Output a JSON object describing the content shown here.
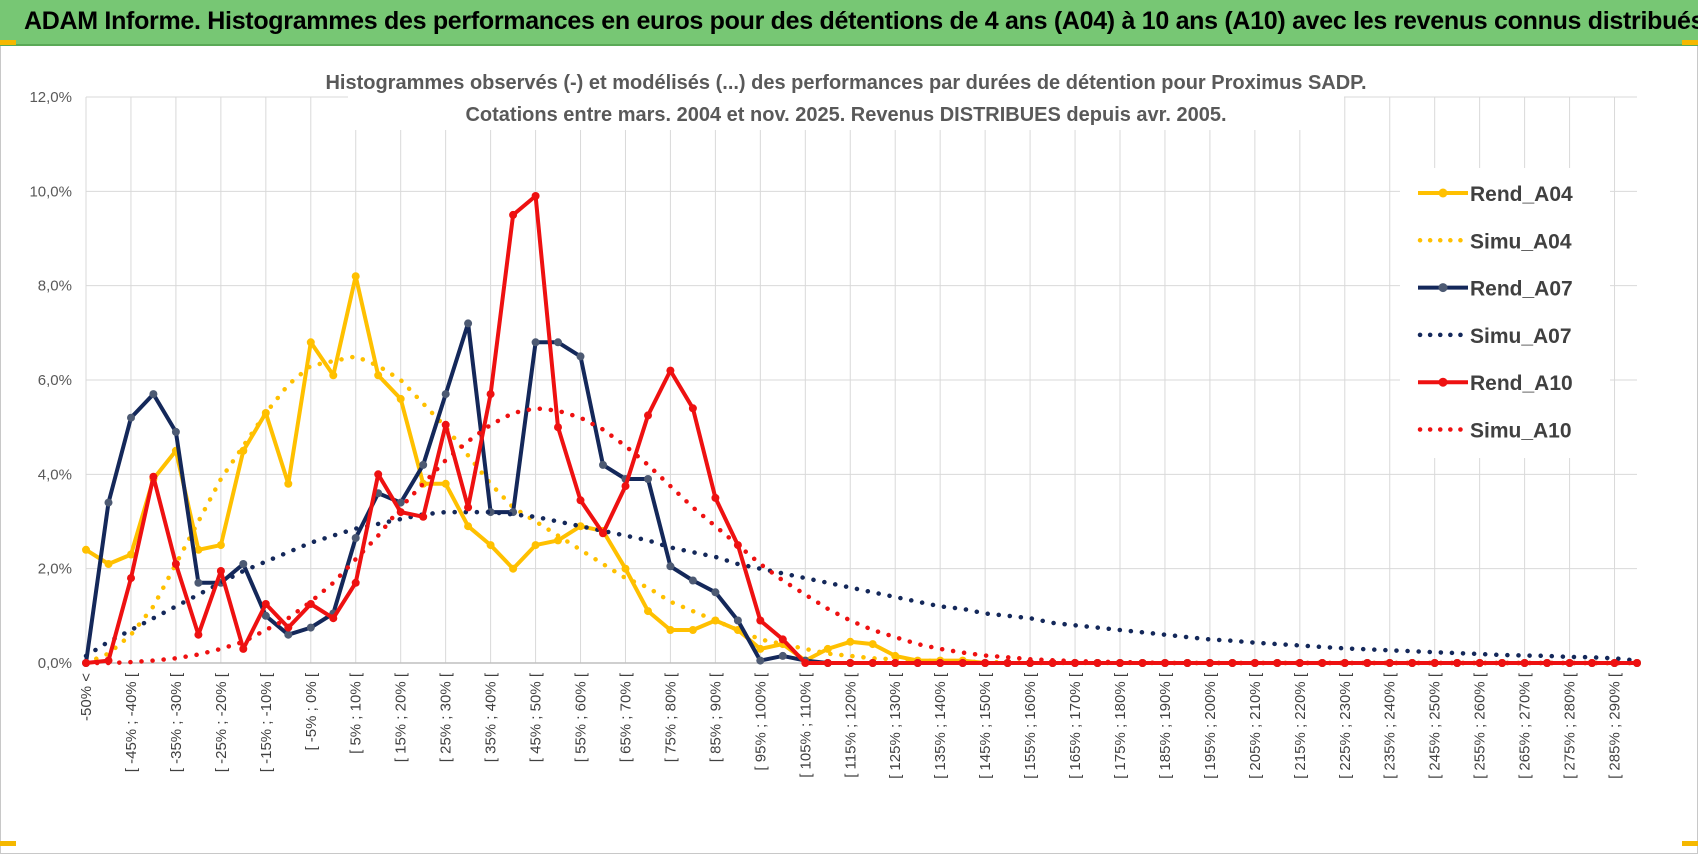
{
  "banner": {
    "title": "ADAM Informe. Histogrammes des performances en euros pour des détentions de 4 ans (A04) à 10 ans (A10) avec les revenus connus distribués"
  },
  "colors": {
    "banner_bg": "#77c774",
    "gold": "#ffc000",
    "navy": "#14285a",
    "red": "#ee1111",
    "grid": "#d9d9d9"
  },
  "chart_data": {
    "type": "line",
    "title_lines": [
      "Histogrammes observés (-) et modélisés (...) des performances par durées de détention pour Proximus SADP.",
      "Cotations entre mars. 2004  et nov. 2025.  Revenus DISTRIBUES depuis avr. 2005."
    ],
    "ylim": [
      0,
      12
    ],
    "y_ticks": [
      "0,0%",
      "2,0%",
      "4,0%",
      "6,0%",
      "8,0%",
      "10,0%",
      "12,0%"
    ],
    "grid": true,
    "legend_position": "right",
    "x_labels": [
      "-50% <",
      "[ -45% ; -40% [",
      "[ -35% ; -30% [",
      "[ -25% ; -20% [",
      "[ -15% ; -10% [",
      "[ -5% ; 0% [",
      "[ 5% ; 10% [",
      "[ 15% ; 20% [",
      "[ 25% ; 30% [",
      "[ 35% ; 40% [",
      "[ 45% ; 50% [",
      "[ 55% ; 60% [",
      "[ 65% ; 70% [",
      "[ 75% ; 80% [",
      "[ 85% ; 90% [",
      "[ 95% ; 100% [",
      "[ 105% ; 110% [",
      "[ 115% ; 120% [",
      "[ 125% ; 130% [",
      "[ 135% ; 140% [",
      "[ 145% ; 150% [",
      "[ 155% ; 160% [",
      "[ 165% ; 170% [",
      "[ 175% ; 180% [",
      "[ 185% ; 190% [",
      "[ 195% ; 200% [",
      "[ 205% ; 210% [",
      "[ 215% ; 220% [",
      "[ 225% ; 230% [",
      "[ 235% ; 240% [",
      "[ 245% ; 250% [",
      "[ 255% ; 260% [",
      "[ 265% ; 270% [",
      "[ 275% ; 280% [",
      "[ 285% ; 290% ["
    ],
    "series": [
      {
        "name": "Rend_A04",
        "style": "solid",
        "color": "#ffc000",
        "values": [
          2.4,
          2.1,
          2.3,
          3.9,
          4.5,
          2.4,
          2.5,
          4.5,
          5.3,
          3.8,
          6.8,
          6.1,
          8.2,
          6.1,
          5.6,
          3.8,
          3.8,
          2.9,
          2.5,
          2.0,
          2.5,
          2.6,
          2.9,
          2.8,
          2.0,
          1.1,
          0.7,
          0.7,
          0.9,
          0.7,
          0.3,
          0.4,
          0.05,
          0.3,
          0.45,
          0.4,
          0.15,
          0.05,
          0.05,
          0.05,
          0.0,
          0.0,
          0.0,
          0.0,
          0.0,
          0.0,
          0.0,
          0.0,
          0.0,
          0.0,
          0.0,
          0.0,
          0.0,
          0.0,
          0.0,
          0.0,
          0.0,
          0.0,
          0.0,
          0.0,
          0.0,
          0.0,
          0.0,
          0.0,
          0.0,
          0.0,
          0.0,
          0.0,
          0.0,
          0.0
        ]
      },
      {
        "name": "Simu_A04",
        "style": "dotted",
        "color": "#ffc000",
        "values": [
          0.0,
          0.2,
          0.6,
          1.2,
          2.1,
          3.0,
          3.9,
          4.6,
          5.3,
          5.9,
          6.3,
          6.4,
          6.5,
          6.3,
          6.0,
          5.5,
          5.0,
          4.4,
          3.8,
          3.3,
          3.0,
          2.7,
          2.4,
          2.1,
          1.8,
          1.6,
          1.3,
          1.1,
          0.9,
          0.7,
          0.5,
          0.4,
          0.3,
          0.2,
          0.15,
          0.1,
          0.08,
          0.05,
          0.04,
          0.03,
          0.02,
          0.01,
          0.0,
          0.0,
          0.0,
          0.0,
          0.0,
          0.0,
          0.0,
          0.0,
          0.0,
          0.0,
          0.0,
          0.0,
          0.0,
          0.0,
          0.0,
          0.0,
          0.0,
          0.0,
          0.0,
          0.0,
          0.0,
          0.0,
          0.0,
          0.0,
          0.0,
          0.0,
          0.0,
          0.0
        ]
      },
      {
        "name": "Rend_A07",
        "style": "solid",
        "color": "#14285a",
        "values": [
          0.0,
          3.4,
          5.2,
          5.7,
          4.9,
          1.7,
          1.7,
          2.1,
          1.0,
          0.6,
          0.75,
          1.05,
          2.65,
          3.6,
          3.4,
          4.2,
          5.7,
          7.2,
          3.2,
          3.2,
          6.8,
          6.8,
          6.5,
          4.2,
          3.9,
          3.9,
          2.05,
          1.75,
          1.5,
          0.9,
          0.05,
          0.15,
          0.05,
          0.0,
          0.0,
          0.0,
          0.0,
          0.0,
          0.0,
          0.0,
          0.0,
          0.0,
          0.0,
          0.0,
          0.0,
          0.0,
          0.0,
          0.0,
          0.0,
          0.0,
          0.0,
          0.0,
          0.0,
          0.0,
          0.0,
          0.0,
          0.0,
          0.0,
          0.0,
          0.0,
          0.0,
          0.0,
          0.0,
          0.0,
          0.0,
          0.0,
          0.0,
          0.0,
          0.0,
          0.0
        ]
      },
      {
        "name": "Simu_A07",
        "style": "dotted",
        "color": "#14285a",
        "values": [
          0.15,
          0.45,
          0.7,
          0.95,
          1.2,
          1.45,
          1.7,
          1.95,
          2.15,
          2.35,
          2.55,
          2.7,
          2.85,
          2.95,
          3.05,
          3.15,
          3.2,
          3.2,
          3.2,
          3.15,
          3.1,
          3.0,
          2.9,
          2.8,
          2.7,
          2.6,
          2.45,
          2.35,
          2.25,
          2.1,
          2.0,
          1.9,
          1.8,
          1.7,
          1.6,
          1.5,
          1.4,
          1.3,
          1.2,
          1.15,
          1.05,
          1.0,
          0.95,
          0.85,
          0.8,
          0.75,
          0.7,
          0.65,
          0.6,
          0.55,
          0.5,
          0.47,
          0.43,
          0.4,
          0.37,
          0.34,
          0.31,
          0.29,
          0.27,
          0.25,
          0.23,
          0.21,
          0.19,
          0.17,
          0.16,
          0.15,
          0.13,
          0.12,
          0.1,
          0.05
        ]
      },
      {
        "name": "Rend_A10",
        "style": "solid",
        "color": "#ee1111",
        "values": [
          0.0,
          0.05,
          1.8,
          3.95,
          2.1,
          0.6,
          1.95,
          0.3,
          1.25,
          0.75,
          1.25,
          0.95,
          1.7,
          4.0,
          3.2,
          3.1,
          5.05,
          3.3,
          5.7,
          9.5,
          9.9,
          5.0,
          3.45,
          2.75,
          3.75,
          5.25,
          6.2,
          5.4,
          3.5,
          2.5,
          0.9,
          0.5,
          0.0,
          0.0,
          0.0,
          0.0,
          0.0,
          0.0,
          0.0,
          0.0,
          0.0,
          0.0,
          0.0,
          0.0,
          0.0,
          0.0,
          0.0,
          0.0,
          0.0,
          0.0,
          0.0,
          0.0,
          0.0,
          0.0,
          0.0,
          0.0,
          0.0,
          0.0,
          0.0,
          0.0,
          0.0,
          0.0,
          0.0,
          0.0,
          0.0,
          0.0,
          0.0,
          0.0,
          0.0,
          0.0
        ]
      },
      {
        "name": "Simu_A10",
        "style": "dotted",
        "color": "#ee1111",
        "values": [
          0.0,
          0.0,
          0.02,
          0.05,
          0.1,
          0.18,
          0.3,
          0.45,
          0.7,
          0.95,
          1.3,
          1.7,
          2.2,
          2.7,
          3.3,
          3.8,
          4.3,
          4.7,
          5.05,
          5.3,
          5.4,
          5.35,
          5.2,
          4.95,
          4.6,
          4.2,
          3.75,
          3.3,
          2.9,
          2.5,
          2.1,
          1.75,
          1.45,
          1.15,
          0.9,
          0.7,
          0.55,
          0.4,
          0.3,
          0.22,
          0.16,
          0.12,
          0.08,
          0.06,
          0.04,
          0.03,
          0.02,
          0.01,
          0.0,
          0.0,
          0.0,
          0.0,
          0.0,
          0.0,
          0.0,
          0.0,
          0.0,
          0.0,
          0.0,
          0.0,
          0.0,
          0.0,
          0.0,
          0.0,
          0.0,
          0.0,
          0.0,
          0.0,
          0.0,
          0.0
        ]
      }
    ]
  }
}
